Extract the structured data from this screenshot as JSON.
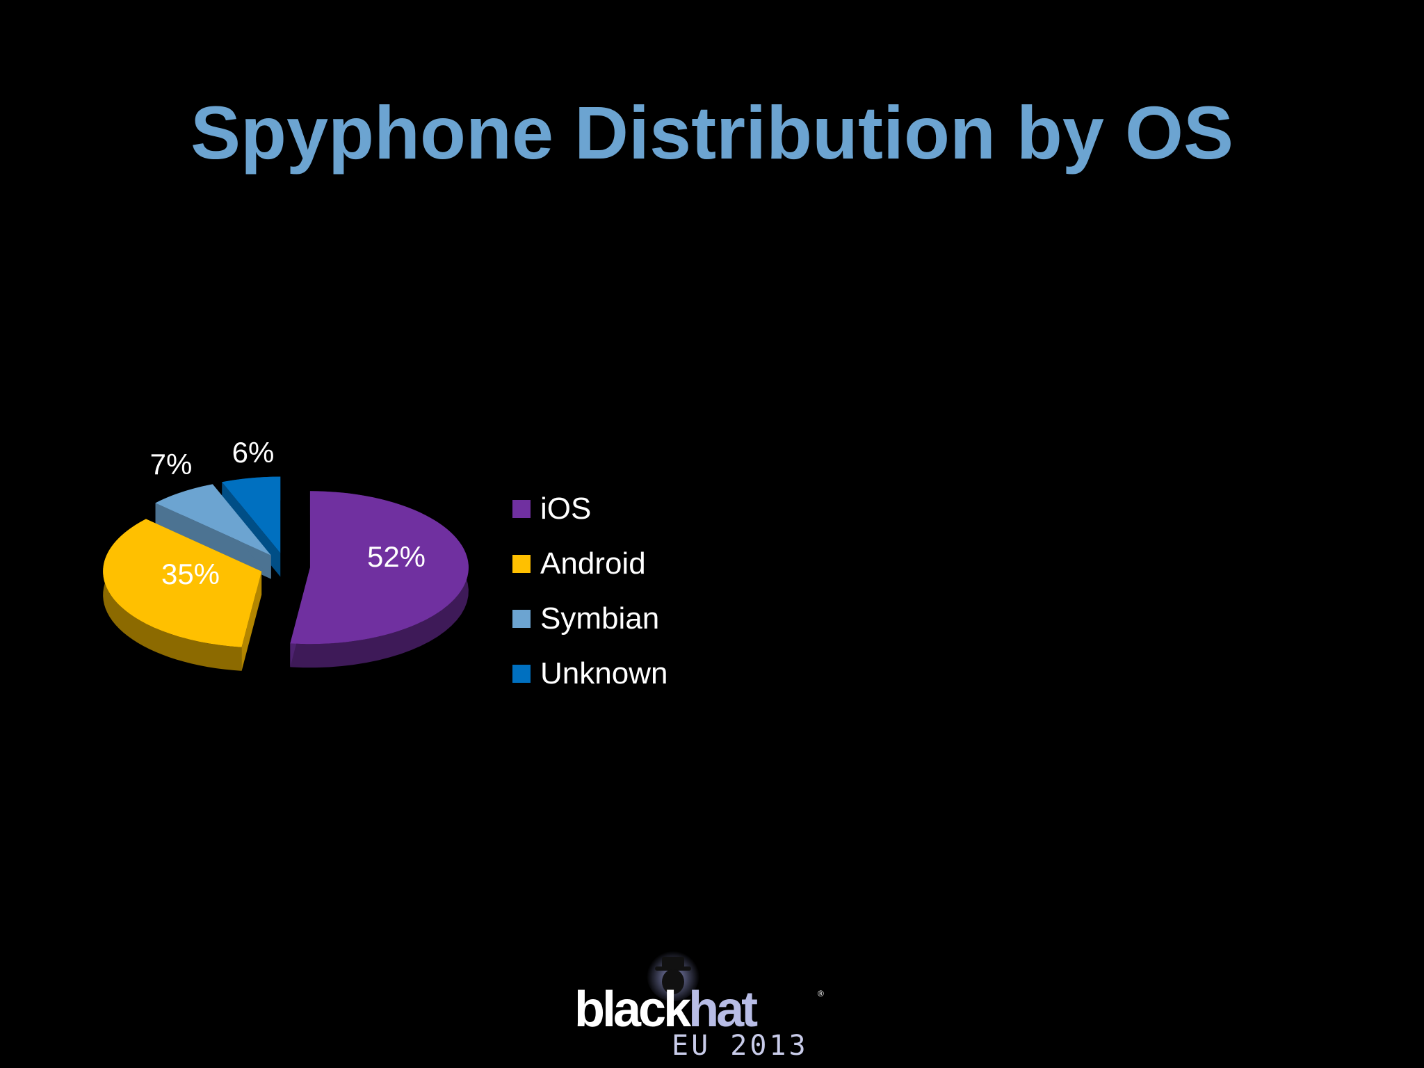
{
  "slide": {
    "title": "Spyphone Distribution by OS"
  },
  "chart_data": {
    "type": "pie",
    "style": "3d-exploded",
    "categories": [
      "iOS",
      "Android",
      "Symbian",
      "Unknown"
    ],
    "values": [
      52,
      35,
      7,
      6
    ],
    "data_labels": [
      "52%",
      "35%",
      "7%",
      "6%"
    ],
    "colors": [
      "#7030a0",
      "#ffc000",
      "#6ca4d1",
      "#0070c0"
    ],
    "legend_placement": "right"
  },
  "logo": {
    "word_black": "black",
    "word_hat": "hat",
    "registered": "®",
    "subtitle": "EU 2013"
  }
}
